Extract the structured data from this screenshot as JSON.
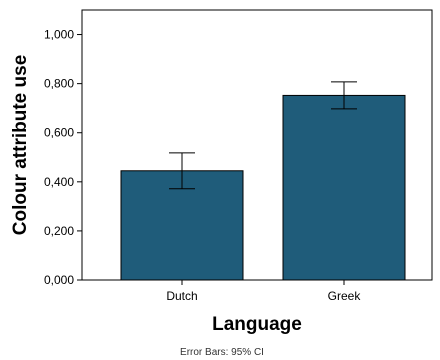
{
  "chart_data": {
    "type": "bar",
    "title": "",
    "xlabel": "Language",
    "ylabel": "Colour attribute use",
    "categories": [
      "Dutch",
      "Greek"
    ],
    "values": [
      0.445,
      0.752
    ],
    "error_bars": {
      "lower": [
        0.372,
        0.697
      ],
      "upper": [
        0.518,
        0.807
      ]
    },
    "ylim": [
      0,
      1.1
    ],
    "yticks": [
      0,
      0.2,
      0.4,
      0.6,
      0.8,
      1.0
    ],
    "ytick_labels": [
      "0,000",
      "0,200",
      "0,400",
      "0,600",
      "0,800",
      "1,000"
    ],
    "bar_color": "#1f5c7a",
    "grid": false,
    "legend": "none",
    "footnote": "Error Bars: 95% CI"
  }
}
